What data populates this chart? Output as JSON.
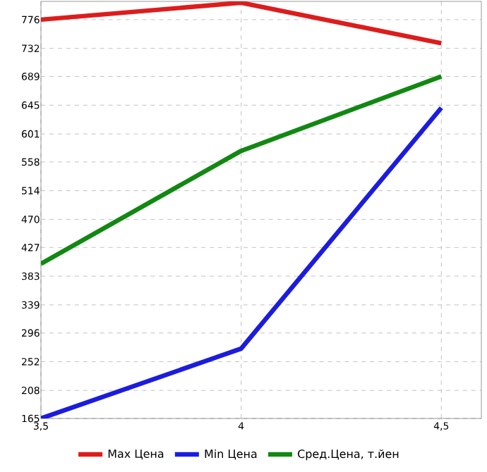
{
  "chart_data": {
    "type": "line",
    "x": [
      3.5,
      4,
      4.5
    ],
    "series": [
      {
        "name": "Max Цена",
        "color": "#dd1c1c",
        "values": [
          776,
          802,
          740
        ]
      },
      {
        "name": "Min Цена",
        "color": "#1c1cdd",
        "values": [
          165,
          272,
          641
        ]
      },
      {
        "name": "Сред.Цена, т.йен",
        "color": "#128812",
        "values": [
          402,
          575,
          689
        ]
      }
    ],
    "xlim": [
      3.5,
      4.6
    ],
    "ylim": [
      165,
      804
    ],
    "xticks": [
      {
        "value": 3.5,
        "label": "3,5"
      },
      4,
      {
        "value": 4.5,
        "label": "4,5"
      }
    ],
    "yticks": [
      165,
      208,
      252,
      296,
      339,
      383,
      427,
      470,
      514,
      558,
      601,
      645,
      689,
      732,
      776
    ],
    "grid": true,
    "legend": "bottom",
    "marker": "none",
    "line_style": "solid"
  }
}
